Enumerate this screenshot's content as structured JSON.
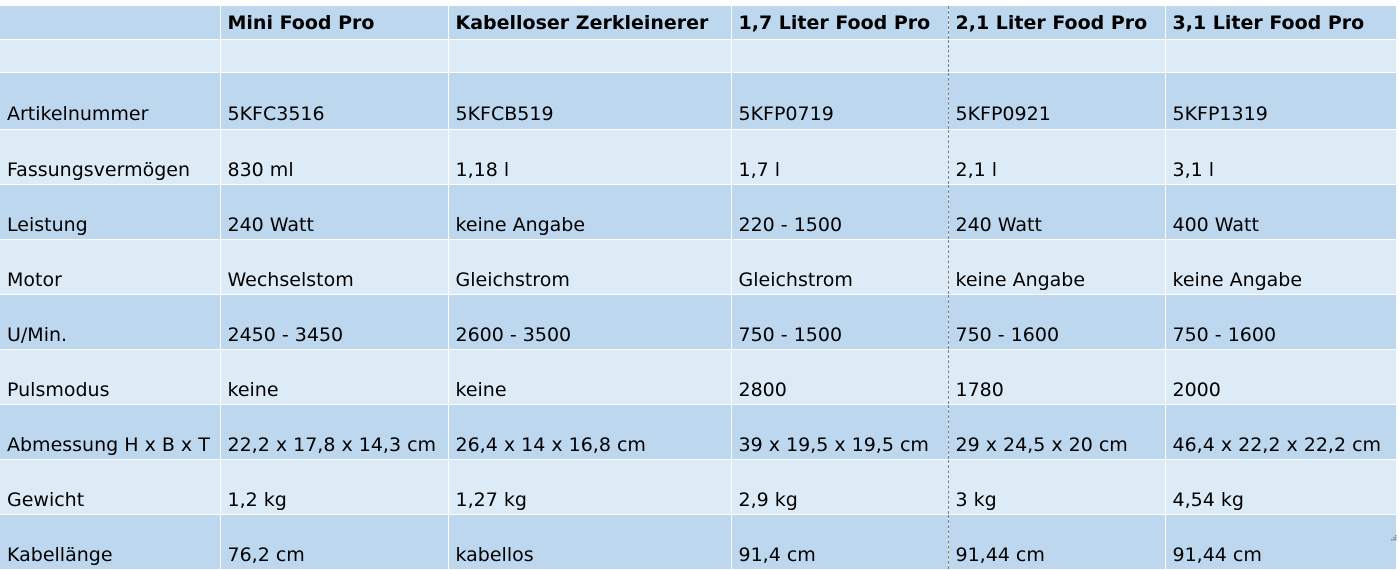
{
  "header": [
    "",
    "Mini Food Pro",
    "Kabelloser Zerkleinerer",
    "1,7 Liter Food Pro",
    "2,1 Liter Food Pro",
    "3,1 Liter Food Pro"
  ],
  "rows": [
    {
      "label": "Artikelnummer",
      "values": [
        "5KFC3516",
        "5KFCB519",
        "5KFP0719",
        "5KFP0921",
        "5KFP1319"
      ]
    },
    {
      "label": "Fassungsvermögen",
      "values": [
        "830 ml",
        "1,18 l",
        "1,7 l",
        "2,1 l",
        "3,1 l"
      ]
    },
    {
      "label": "Leistung",
      "values": [
        "240 Watt",
        "keine Angabe",
        "220 - 1500",
        "240 Watt",
        "400 Watt"
      ]
    },
    {
      "label": "Motor",
      "values": [
        "Wechselstom",
        "Gleichstrom",
        "Gleichstrom",
        "keine Angabe",
        "keine Angabe"
      ]
    },
    {
      "label": "U/Min.",
      "values": [
        "2450 - 3450",
        "2600 - 3500",
        "750 - 1500",
        "750 - 1600",
        "750 - 1600"
      ]
    },
    {
      "label": "Pulsmodus",
      "values": [
        "keine",
        "keine",
        "2800",
        "1780",
        "2000"
      ]
    },
    {
      "label": "Abmessung H x B x T",
      "values": [
        "22,2 x 17,8 x 14,3 cm",
        "26,4 x 14 x 16,8 cm",
        "39 x 19,5 x 19,5 cm",
        "29 x 24,5 x 20 cm",
        "46,4 x 22,2 x 22,2 cm"
      ]
    },
    {
      "label": "Gewicht",
      "values": [
        "1,2 kg",
        "1,27 kg",
        "2,9 kg",
        "3 kg",
        "4,54 kg"
      ]
    },
    {
      "label": "Kabellänge",
      "values": [
        "76,2 cm",
        "kabellos",
        "91,4 cm",
        "91,44 cm",
        "91,44 cm"
      ]
    }
  ],
  "colors": {
    "band_dark": "#bdd7ee",
    "band_light": "#ddebf7",
    "page_break": "#7f7f7f"
  },
  "icons": {
    "resize_handle": "table-resize-handle-icon"
  }
}
